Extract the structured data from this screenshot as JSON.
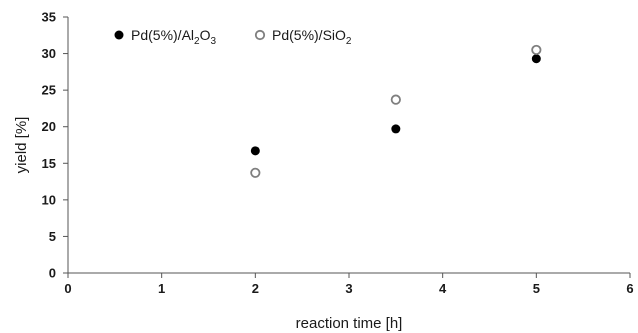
{
  "chart_data": {
    "type": "scatter",
    "xlabel": "reaction time [h]",
    "ylabel": "yield [%]",
    "xlim": [
      0,
      6
    ],
    "ylim": [
      0,
      35
    ],
    "x_ticks": [
      "0",
      "1",
      "2",
      "3",
      "4",
      "5",
      "6"
    ],
    "y_ticks": [
      "0",
      "5",
      "10",
      "15",
      "20",
      "25",
      "30",
      "35"
    ],
    "grid": false,
    "legend_position": "top-left",
    "series": [
      {
        "name_parts": [
          "Pd(5%)/Al",
          "2",
          "O",
          "3"
        ],
        "marker": "filled-circle",
        "color": "#000000",
        "points": [
          {
            "x": 2,
            "y": 16.7
          },
          {
            "x": 3.5,
            "y": 19.7
          },
          {
            "x": 5,
            "y": 29.3
          }
        ]
      },
      {
        "name_parts": [
          "Pd(5%)/SiO",
          "2"
        ],
        "marker": "open-circle",
        "color": "#7f7f7f",
        "points": [
          {
            "x": 2,
            "y": 13.7
          },
          {
            "x": 3.5,
            "y": 23.7
          },
          {
            "x": 5,
            "y": 30.5
          }
        ]
      }
    ]
  }
}
